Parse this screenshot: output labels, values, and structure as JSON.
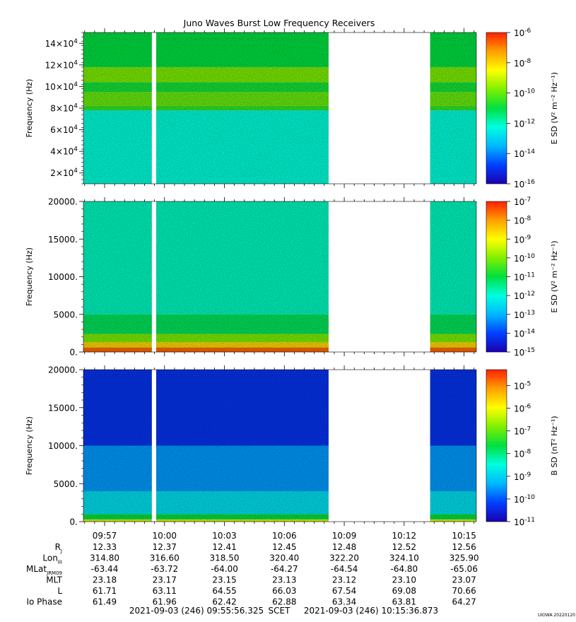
{
  "title": "Juno Waves Burst Low Frequency Receivers",
  "credit": "UIOWA 20220120",
  "scet": {
    "start": "2021-09-03 (246) 09:55:56.325",
    "label": "SCET",
    "end": "2021-09-03 (246) 10:15:36.873"
  },
  "colors": {
    "gradient": [
      "#1a00b0",
      "#0040ff",
      "#00b8ff",
      "#00ffe0",
      "#00e040",
      "#80f000",
      "#ffff00",
      "#ffa000",
      "#ff2000"
    ],
    "background": "#ffffff",
    "low_band": "#ff4000"
  },
  "chart_data": [
    {
      "type": "heatmap",
      "ylabel": "Frequency (Hz)",
      "ylim": [
        10000,
        150000
      ],
      "yticks": [
        20000,
        40000,
        60000,
        80000,
        100000,
        120000,
        140000
      ],
      "ytick_labels": [
        {
          "base": "2×10",
          "exp": "4"
        },
        {
          "base": "4×10",
          "exp": "4"
        },
        {
          "base": "6×10",
          "exp": "4"
        },
        {
          "base": "8×10",
          "exp": "4"
        },
        {
          "base": "10×10",
          "exp": "4"
        },
        {
          "base": "12×10",
          "exp": "4"
        },
        {
          "base": "14×10",
          "exp": "4"
        }
      ],
      "colorbar": {
        "label": "E SD (V² m⁻² Hz⁻¹)",
        "log_range": [
          -16,
          -6
        ],
        "ticks": [
          -16,
          -14,
          -12,
          -10,
          -8,
          -6
        ],
        "tick_labels": [
          {
            "base": "10",
            "exp": "-16"
          },
          {
            "base": "10",
            "exp": "-14"
          },
          {
            "base": "10",
            "exp": "-12"
          },
          {
            "base": "10",
            "exp": "-10"
          },
          {
            "base": "10",
            "exp": "-8"
          },
          {
            "base": "10",
            "exp": "-6"
          }
        ]
      },
      "bands": [
        {
          "from": 10000,
          "to": 78000,
          "level": 0.38
        },
        {
          "from": 78000,
          "to": 82000,
          "level": 0.55
        },
        {
          "from": 82000,
          "to": 95000,
          "level": 0.6
        },
        {
          "from": 95000,
          "to": 104000,
          "level": 0.52
        },
        {
          "from": 104000,
          "to": 118000,
          "level": 0.62
        },
        {
          "from": 118000,
          "to": 150000,
          "level": 0.5
        }
      ]
    },
    {
      "type": "heatmap",
      "ylabel": "Frequency (Hz)",
      "ylim": [
        0,
        20000
      ],
      "yticks": [
        0,
        5000,
        10000,
        15000,
        20000
      ],
      "ytick_labels": [
        {
          "base": "0.",
          "exp": ""
        },
        {
          "base": "5000.",
          "exp": ""
        },
        {
          "base": "10000.",
          "exp": ""
        },
        {
          "base": "15000.",
          "exp": ""
        },
        {
          "base": "20000.",
          "exp": ""
        }
      ],
      "colorbar": {
        "label": "E SD (V² m⁻² Hz⁻¹)",
        "log_range": [
          -15,
          -7
        ],
        "ticks": [
          -15,
          -14,
          -13,
          -12,
          -11,
          -10,
          -9,
          -8,
          -7
        ],
        "tick_labels": [
          {
            "base": "10",
            "exp": "-15"
          },
          {
            "base": "10",
            "exp": "-14"
          },
          {
            "base": "10",
            "exp": "-13"
          },
          {
            "base": "10",
            "exp": "-12"
          },
          {
            "base": "10",
            "exp": "-11"
          },
          {
            "base": "10",
            "exp": "-10"
          },
          {
            "base": "10",
            "exp": "-9"
          },
          {
            "base": "10",
            "exp": "-8"
          },
          {
            "base": "10",
            "exp": "-7"
          }
        ]
      },
      "bands": [
        {
          "from": 0,
          "to": 600,
          "level": 0.93
        },
        {
          "from": 600,
          "to": 1300,
          "level": 0.8
        },
        {
          "from": 1300,
          "to": 2400,
          "level": 0.62
        },
        {
          "from": 2400,
          "to": 5000,
          "level": 0.48
        },
        {
          "from": 5000,
          "to": 20000,
          "level": 0.4
        }
      ]
    },
    {
      "type": "heatmap",
      "ylabel": "Frequency (Hz)",
      "ylim": [
        0,
        20000
      ],
      "yticks": [
        0,
        5000,
        10000,
        15000,
        20000
      ],
      "ytick_labels": [
        {
          "base": "0.",
          "exp": ""
        },
        {
          "base": "5000.",
          "exp": ""
        },
        {
          "base": "10000.",
          "exp": ""
        },
        {
          "base": "15000.",
          "exp": ""
        },
        {
          "base": "20000.",
          "exp": ""
        }
      ],
      "colorbar": {
        "label": "B SD (nT² Hz⁻¹)",
        "log_range": [
          -11,
          -4.3
        ],
        "ticks": [
          -11,
          -10,
          -9,
          -8,
          -7,
          -6,
          -5
        ],
        "tick_labels": [
          {
            "base": "10",
            "exp": "-11"
          },
          {
            "base": "10",
            "exp": "-10"
          },
          {
            "base": "10",
            "exp": "-9"
          },
          {
            "base": "10",
            "exp": "-8"
          },
          {
            "base": "10",
            "exp": "-7"
          },
          {
            "base": "10",
            "exp": "-6"
          },
          {
            "base": "10",
            "exp": "-5"
          }
        ]
      },
      "bands": [
        {
          "from": 0,
          "to": 300,
          "level": 0.72
        },
        {
          "from": 300,
          "to": 1000,
          "level": 0.5
        },
        {
          "from": 1000,
          "to": 4000,
          "level": 0.32
        },
        {
          "from": 4000,
          "to": 10000,
          "level": 0.22
        },
        {
          "from": 10000,
          "to": 20000,
          "level": 0.1
        }
      ]
    }
  ],
  "time_axis": {
    "start_seconds": 35756.3,
    "end_seconds": 36936.9,
    "tick_labels": [
      "09:57",
      "10:00",
      "10:03",
      "10:06",
      "10:09",
      "10:12",
      "10:15"
    ],
    "tick_seconds": [
      35820,
      36000,
      36180,
      36360,
      36540,
      36720,
      36900
    ],
    "minor_step_seconds": 30,
    "data_gaps": [
      {
        "from": "09:59:22",
        "to": "09:59:35",
        "from_seconds": 35962,
        "to_seconds": 35975
      },
      {
        "from": "10:08:13",
        "to": "10:13:18",
        "from_seconds": 36493,
        "to_seconds": 36798
      }
    ]
  },
  "ephemeris": [
    {
      "label": "R",
      "sub": "J",
      "values": [
        "12.33",
        "12.37",
        "12.41",
        "12.45",
        "12.48",
        "12.52",
        "12.56"
      ]
    },
    {
      "label": "Lon",
      "sub": "III",
      "values": [
        "314.80",
        "316.60",
        "318.50",
        "320.40",
        "322.20",
        "324.10",
        "325.90"
      ]
    },
    {
      "label": "MLat",
      "sub": "JRM09",
      "values": [
        "-63.44",
        "-63.72",
        "-64.00",
        "-64.27",
        "-64.54",
        "-64.80",
        "-65.06"
      ]
    },
    {
      "label": "MLT",
      "sub": "",
      "values": [
        "23.18",
        "23.17",
        "23.15",
        "23.13",
        "23.12",
        "23.10",
        "23.07"
      ]
    },
    {
      "label": "L",
      "sub": "",
      "values": [
        "61.71",
        "63.11",
        "64.55",
        "66.03",
        "67.54",
        "69.08",
        "70.66"
      ]
    },
    {
      "label": "Io Phase",
      "sub": "",
      "values": [
        "61.49",
        "61.96",
        "62.42",
        "62.88",
        "63.34",
        "63.81",
        "64.27"
      ]
    }
  ]
}
